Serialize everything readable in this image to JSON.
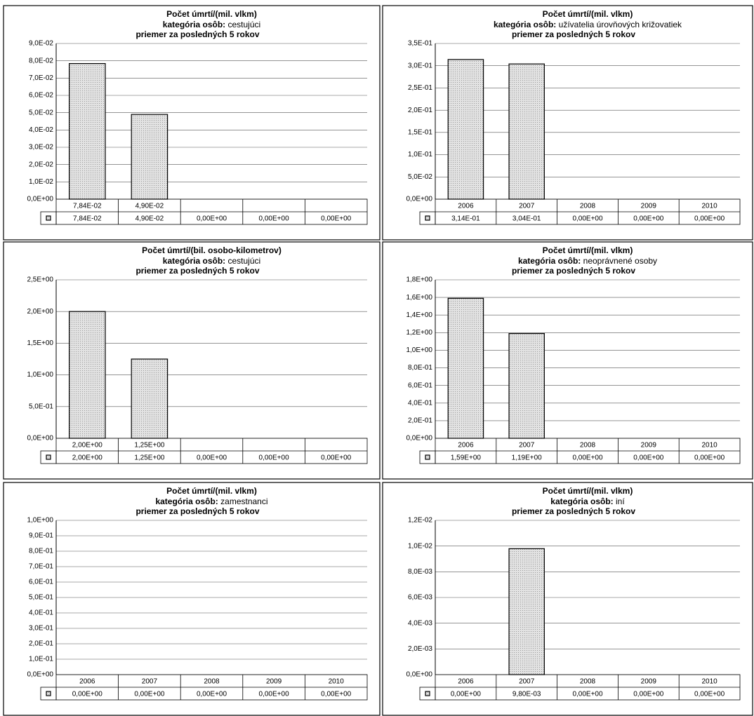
{
  "chart_data": [
    {
      "type": "bar",
      "title": "Počet úmrtí/(mil. vlkm)",
      "category_label": "kategória osôb:",
      "category": "cestujúci",
      "subtitle": "priemer za posledných 5 rokov",
      "color": "#cfcfcf",
      "grid": true,
      "categories": [
        "7,84E-02",
        "4,90E-02",
        null,
        null,
        null
      ],
      "values": [
        0.0784,
        0.049,
        0,
        0,
        0
      ],
      "value_labels": [
        "7,84E-02",
        "4,90E-02",
        "0,00E+00",
        "0,00E+00",
        "0,00E+00"
      ],
      "ylim": [
        0,
        0.09
      ],
      "yticks": [
        {
          "value": 0,
          "label": "0,0E+00"
        },
        {
          "value": 0.01,
          "label": "1,0E-02"
        },
        {
          "value": 0.02,
          "label": "2,0E-02"
        },
        {
          "value": 0.03,
          "label": "3,0E-02"
        },
        {
          "value": 0.04,
          "label": "4,0E-02"
        },
        {
          "value": 0.05,
          "label": "5,0E-02"
        },
        {
          "value": 0.06,
          "label": "6,0E-02"
        },
        {
          "value": 0.07,
          "label": "7,0E-02"
        },
        {
          "value": 0.08,
          "label": "8,0E-02"
        },
        {
          "value": 0.09,
          "label": "9,0E-02"
        }
      ]
    },
    {
      "type": "bar",
      "title": "Počet úmrtí/(mil. vlkm)",
      "category_label": "kategória osôb:",
      "category": "užívatelia úrovňových križovatiek",
      "subtitle": "priemer za posledných 5 rokov",
      "color": "#cfcfcf",
      "grid": true,
      "categories": [
        "2006",
        "2007",
        "2008",
        "2009",
        "2010"
      ],
      "values": [
        0.314,
        0.304,
        0,
        0,
        0
      ],
      "value_labels": [
        "3,14E-01",
        "3,04E-01",
        "0,00E+00",
        "0,00E+00",
        "0,00E+00"
      ],
      "ylim": [
        0,
        0.35
      ],
      "yticks": [
        {
          "value": 0,
          "label": "0,0E+00"
        },
        {
          "value": 0.05,
          "label": "5,0E-02"
        },
        {
          "value": 0.1,
          "label": "1,0E-01"
        },
        {
          "value": 0.15,
          "label": "1,5E-01"
        },
        {
          "value": 0.2,
          "label": "2,0E-01"
        },
        {
          "value": 0.25,
          "label": "2,5E-01"
        },
        {
          "value": 0.3,
          "label": "3,0E-01"
        },
        {
          "value": 0.35,
          "label": "3,5E-01"
        }
      ]
    },
    {
      "type": "bar",
      "title": "Počet úmrtí/(bil. osobo-kilometrov)",
      "category_label": "kategória osôb:",
      "category": "cestujúci",
      "subtitle": "priemer za posledných 5 rokov",
      "color": "#cfcfcf",
      "grid": true,
      "categories": [
        "2,00E+00",
        "1,25E+00",
        null,
        null,
        null
      ],
      "values": [
        2,
        1.25,
        0,
        0,
        0
      ],
      "value_labels": [
        "2,00E+00",
        "1,25E+00",
        "0,00E+00",
        "0,00E+00",
        "0,00E+00"
      ],
      "ylim": [
        0,
        2.5
      ],
      "yticks": [
        {
          "value": 0,
          "label": "0,0E+00"
        },
        {
          "value": 0.5,
          "label": "5,0E-01"
        },
        {
          "value": 1,
          "label": "1,0E+00"
        },
        {
          "value": 1.5,
          "label": "1,5E+00"
        },
        {
          "value": 2,
          "label": "2,0E+00"
        },
        {
          "value": 2.5,
          "label": "2,5E+00"
        }
      ]
    },
    {
      "type": "bar",
      "title": "Počet úmrtí/(mil. vlkm)",
      "category_label": "kategória osôb:",
      "category": "neoprávnené osoby",
      "subtitle": "priemer za posledných 5 rokov",
      "color": "#cfcfcf",
      "grid": true,
      "categories": [
        "2006",
        "2007",
        "2008",
        "2009",
        "2010"
      ],
      "values": [
        1.59,
        1.19,
        0,
        0,
        0
      ],
      "value_labels": [
        "1,59E+00",
        "1,19E+00",
        "0,00E+00",
        "0,00E+00",
        "0,00E+00"
      ],
      "ylim": [
        0,
        1.8
      ],
      "yticks": [
        {
          "value": 0,
          "label": "0,0E+00"
        },
        {
          "value": 0.2,
          "label": "2,0E-01"
        },
        {
          "value": 0.4,
          "label": "4,0E-01"
        },
        {
          "value": 0.6,
          "label": "6,0E-01"
        },
        {
          "value": 0.8,
          "label": "8,0E-01"
        },
        {
          "value": 1,
          "label": "1,0E+00"
        },
        {
          "value": 1.2,
          "label": "1,2E+00"
        },
        {
          "value": 1.4,
          "label": "1,4E+00"
        },
        {
          "value": 1.6,
          "label": "1,6E+00"
        },
        {
          "value": 1.8,
          "label": "1,8E+00"
        }
      ]
    },
    {
      "type": "bar",
      "title": "Počet úmrtí/(mil. vlkm)",
      "category_label": "kategória osôb:",
      "category": "zamestnanci",
      "subtitle": "priemer za posledných 5 rokov",
      "color": "#cfcfcf",
      "grid": true,
      "categories": [
        "2006",
        "2007",
        "2008",
        "2009",
        "2010"
      ],
      "values": [
        0,
        0,
        0,
        0,
        0
      ],
      "value_labels": [
        "0,00E+00",
        "0,00E+00",
        "0,00E+00",
        "0,00E+00",
        "0,00E+00"
      ],
      "ylim": [
        0,
        1
      ],
      "yticks": [
        {
          "value": 0,
          "label": "0,0E+00"
        },
        {
          "value": 0.1,
          "label": "1,0E-01"
        },
        {
          "value": 0.2,
          "label": "2,0E-01"
        },
        {
          "value": 0.3,
          "label": "3,0E-01"
        },
        {
          "value": 0.4,
          "label": "4,0E-01"
        },
        {
          "value": 0.5,
          "label": "5,0E-01"
        },
        {
          "value": 0.6,
          "label": "6,0E-01"
        },
        {
          "value": 0.7,
          "label": "7,0E-01"
        },
        {
          "value": 0.8,
          "label": "8,0E-01"
        },
        {
          "value": 0.9,
          "label": "9,0E-01"
        },
        {
          "value": 1,
          "label": "1,0E+00"
        }
      ]
    },
    {
      "type": "bar",
      "title": "Počet úmrtí/(mil. vlkm)",
      "category_label": "kategória osôb:",
      "category": "iní",
      "subtitle": "priemer za posledných 5 rokov",
      "color": "#cfcfcf",
      "grid": true,
      "categories": [
        "2006",
        "2007",
        "2008",
        "2009",
        "2010"
      ],
      "values": [
        0,
        0.0098,
        0,
        0,
        0
      ],
      "value_labels": [
        "0,00E+00",
        "9,80E-03",
        "0,00E+00",
        "0,00E+00",
        "0,00E+00"
      ],
      "ylim": [
        0,
        0.012
      ],
      "yticks": [
        {
          "value": 0,
          "label": "0,0E+00"
        },
        {
          "value": 0.002,
          "label": "2,0E-03"
        },
        {
          "value": 0.004,
          "label": "4,0E-03"
        },
        {
          "value": 0.006,
          "label": "6,0E-03"
        },
        {
          "value": 0.008,
          "label": "8,0E-03"
        },
        {
          "value": 0.01,
          "label": "1,0E-02"
        },
        {
          "value": 0.012,
          "label": "1,2E-02"
        }
      ]
    }
  ]
}
